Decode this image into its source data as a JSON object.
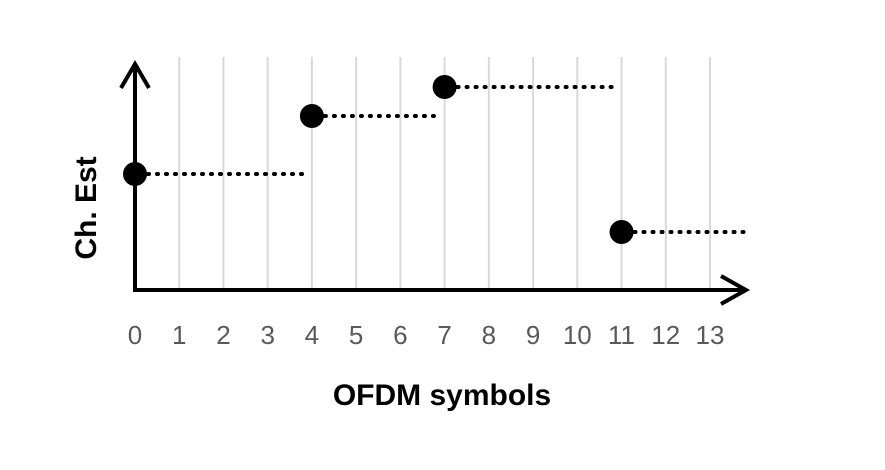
{
  "chart_data": {
    "type": "scatter",
    "title": "",
    "xlabel": "OFDM symbols",
    "ylabel": "Ch. Est",
    "x_ticks": [
      "0",
      "1",
      "2",
      "3",
      "4",
      "5",
      "6",
      "7",
      "8",
      "9",
      "10",
      "11",
      "12",
      "13"
    ],
    "xlim": [
      0,
      14
    ],
    "ylim": [
      0,
      4
    ],
    "grid": "vertical",
    "legend": "none",
    "series": [
      {
        "points": [
          {
            "x": 0,
            "y": 2,
            "hold_until": 4
          },
          {
            "x": 4,
            "y": 3,
            "hold_until": 7
          },
          {
            "x": 7,
            "y": 3.5,
            "hold_until": 11
          },
          {
            "x": 11,
            "y": 1,
            "hold_until": 14
          }
        ]
      }
    ],
    "colors": {
      "axis": "#000000",
      "grid": "#d9d9d9",
      "marker": "#000000",
      "tick_text": "#595959"
    }
  }
}
